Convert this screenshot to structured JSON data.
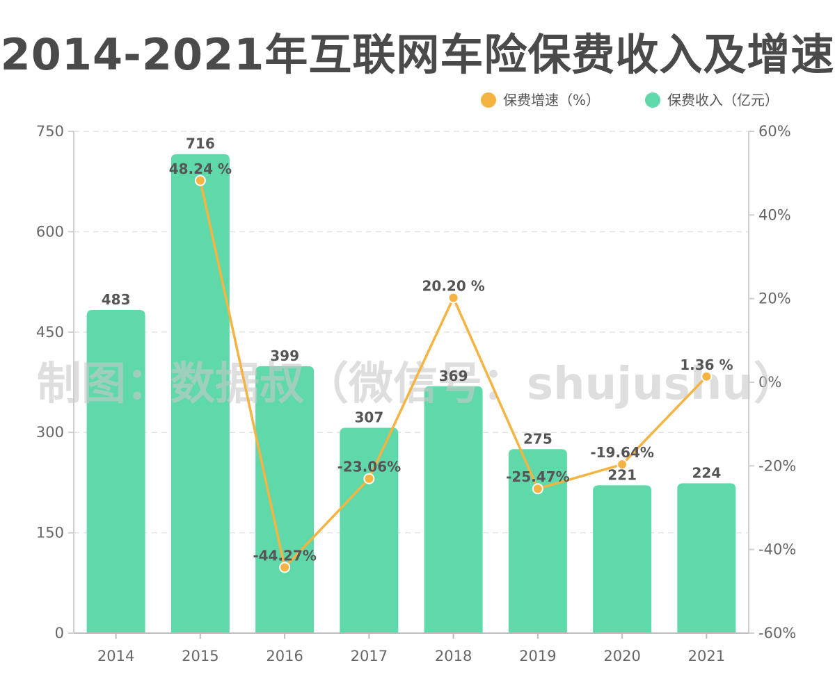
{
  "chart_data": {
    "type": "bar",
    "title": "2014-2021年互联网车险保费收入及增速",
    "categories": [
      "2014",
      "2015",
      "2016",
      "2017",
      "2018",
      "2019",
      "2020",
      "2021"
    ],
    "series": [
      {
        "name": "保费收入（亿元）",
        "type": "bar",
        "axis": "left",
        "color": "#5fd9aa",
        "values": [
          483,
          716,
          399,
          307,
          369,
          275,
          221,
          224
        ],
        "labels": [
          "483",
          "716",
          "399",
          "307",
          "369",
          "275",
          "221",
          "224"
        ]
      },
      {
        "name": "保费增速（%）",
        "type": "line",
        "axis": "right",
        "color": "#f5b342",
        "values": [
          null,
          48.24,
          -44.27,
          -23.06,
          20.2,
          -25.47,
          -19.64,
          1.36
        ],
        "labels": [
          null,
          "48.24 %",
          "-44.27%",
          "-23.06%",
          "20.20 %",
          "-25.47%",
          "-19.64%",
          "1.36 %"
        ]
      }
    ],
    "y_left": {
      "ylim": [
        0,
        750
      ],
      "ticks": [
        0,
        150,
        300,
        450,
        600,
        750
      ],
      "tick_labels": [
        "0",
        "150",
        "300",
        "450",
        "600",
        "750"
      ]
    },
    "y_right": {
      "ylim": [
        -60,
        60
      ],
      "ticks": [
        -60,
        -40,
        -20,
        0,
        20,
        40,
        60
      ],
      "tick_labels": [
        "-60%",
        "-40%",
        "-20%",
        "0%",
        "20%",
        "40%",
        "60%"
      ]
    },
    "grid": "horizontal dashed",
    "legend_position": "top-right"
  },
  "watermark": "制图：数据叔（微信号：shujushu）"
}
